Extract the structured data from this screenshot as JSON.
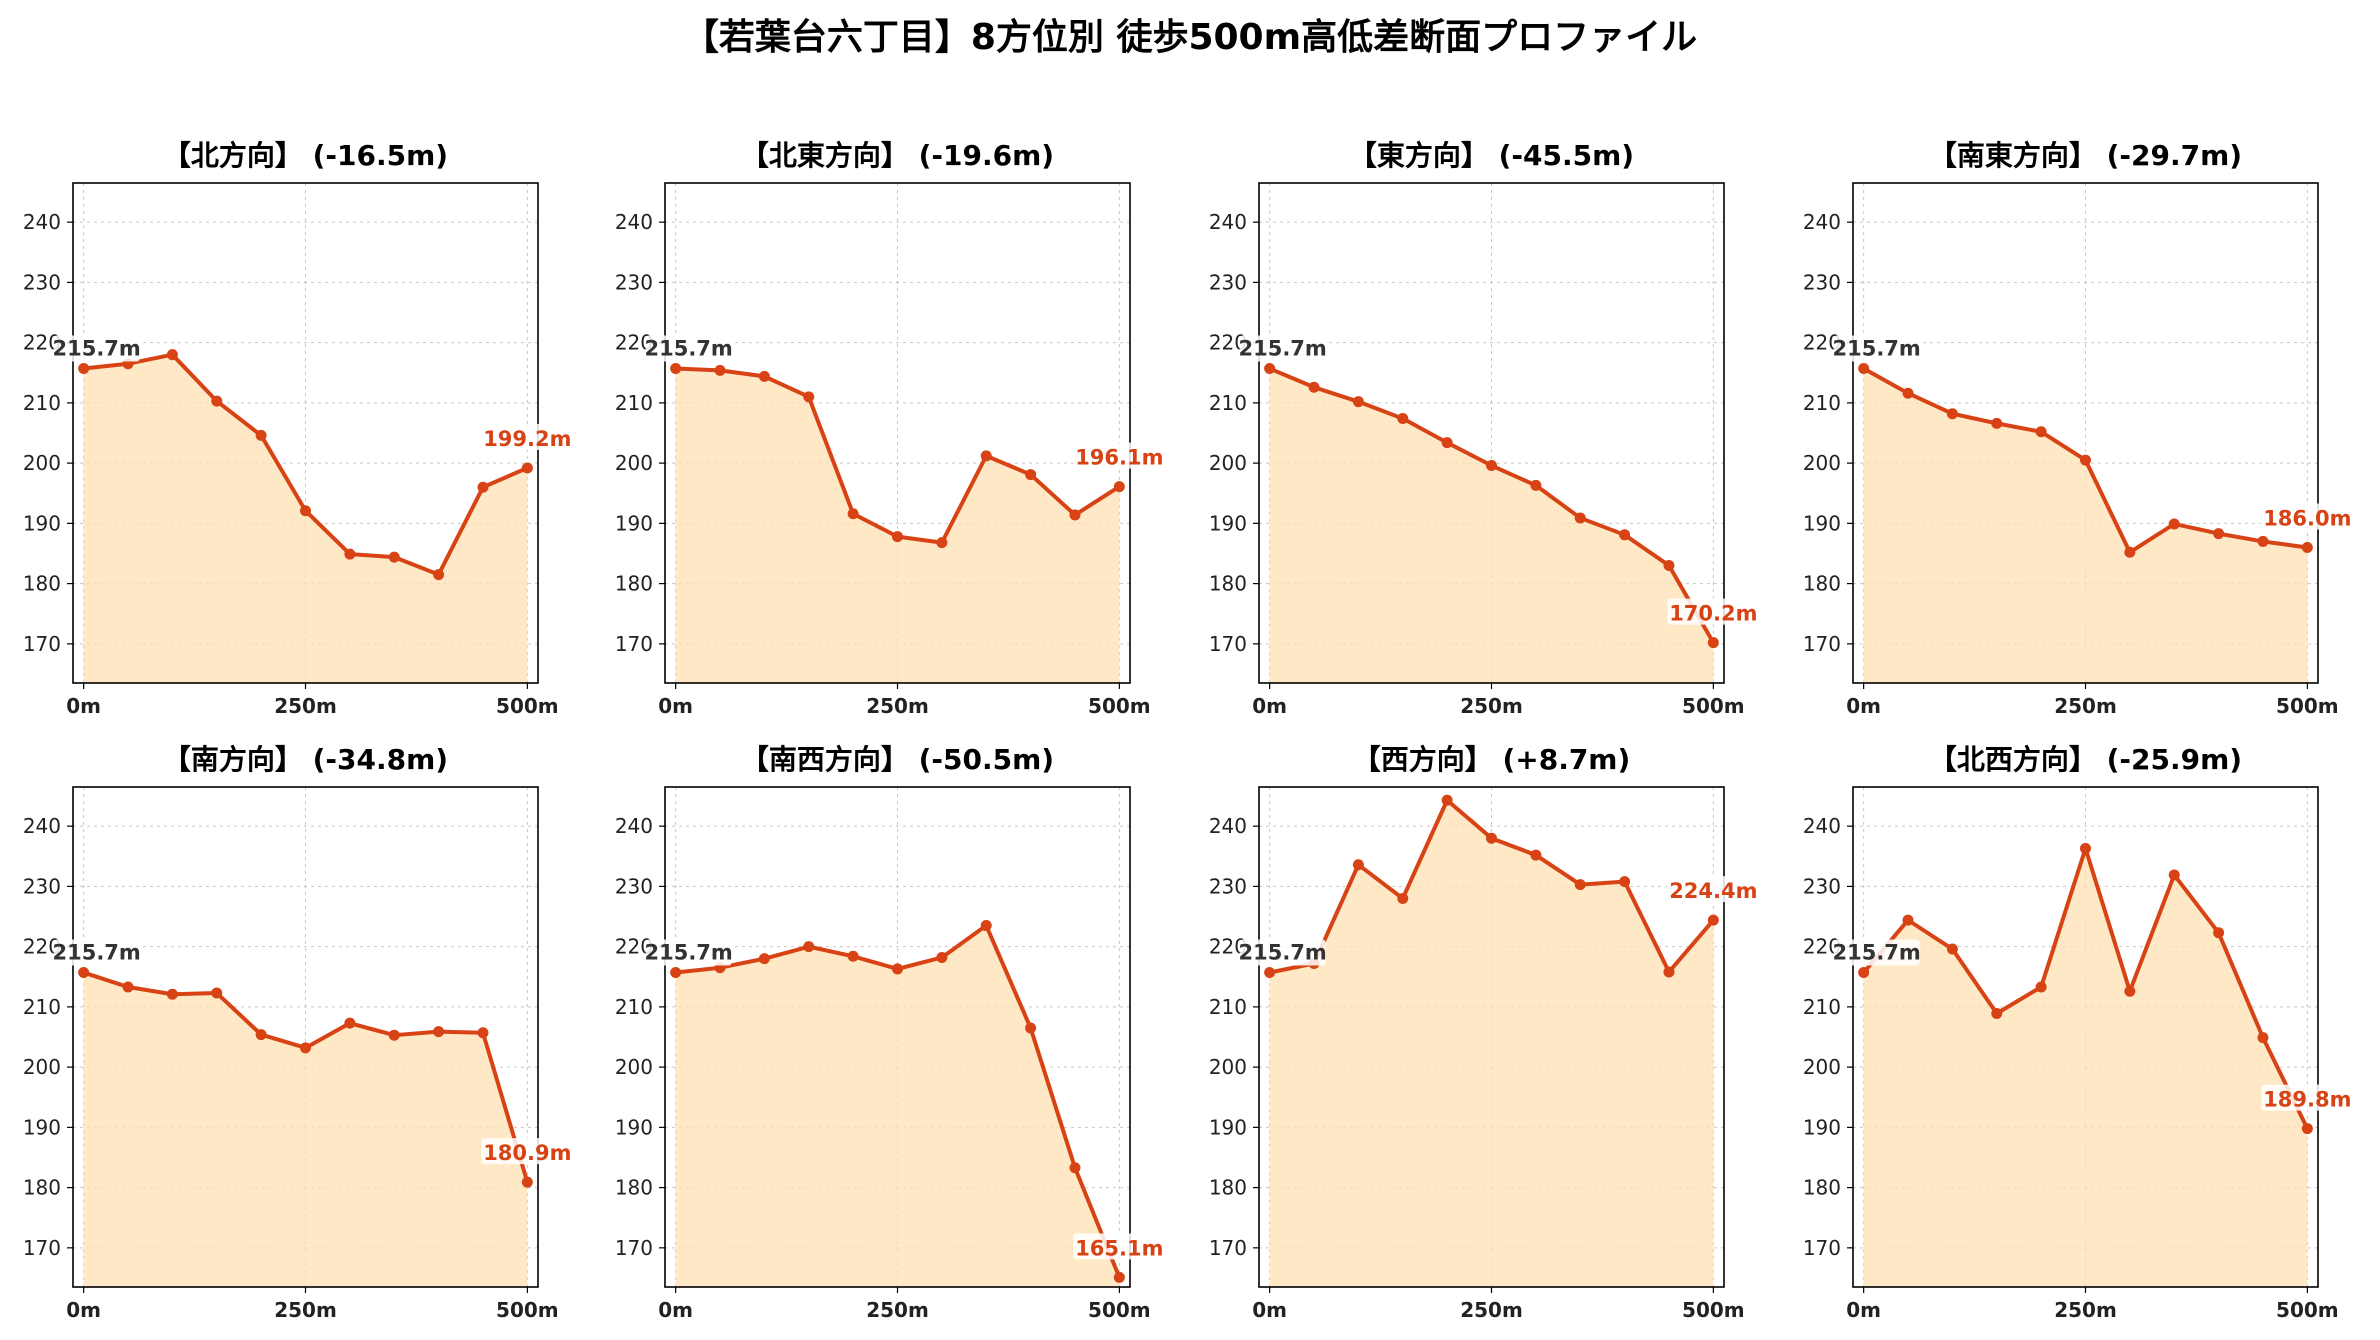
{
  "title": "【若葉台六丁目】8方位別 徒歩500m高低差断面プロファイル",
  "colors": {
    "line": "#d84315",
    "fill": "#ffe0b2",
    "grid": "#b0b0b0",
    "start_label": "#333333",
    "end_label": "#d84315"
  },
  "chart_data": [
    {
      "type": "area",
      "title": "【北方向】 (-16.5m)",
      "x": [
        0,
        50,
        100,
        150,
        200,
        250,
        300,
        350,
        400,
        450,
        500
      ],
      "y": [
        215.7,
        216.5,
        218.0,
        210.3,
        204.6,
        192.1,
        184.9,
        184.4,
        181.5,
        196.0,
        199.2
      ],
      "start_label": "215.7m",
      "end_label": "199.2m",
      "xticks": [
        0,
        250,
        500
      ],
      "xtick_labels": [
        "0m",
        "250m",
        "500m"
      ],
      "yticks": [
        170,
        180,
        190,
        200,
        210,
        220,
        230,
        240
      ],
      "ytick_labels": [
        "170",
        "180",
        "190",
        "200",
        "210",
        "220",
        "230",
        "240"
      ],
      "xlim": [
        -12,
        512
      ],
      "ylim": [
        163.5,
        246.5
      ],
      "grid": true
    },
    {
      "type": "area",
      "title": "【北東方向】 (-19.6m)",
      "x": [
        0,
        50,
        100,
        150,
        200,
        250,
        300,
        350,
        400,
        450,
        500
      ],
      "y": [
        215.7,
        215.4,
        214.4,
        211.0,
        191.6,
        187.8,
        186.8,
        201.2,
        198.1,
        191.4,
        196.1
      ],
      "start_label": "215.7m",
      "end_label": "196.1m",
      "xticks": [
        0,
        250,
        500
      ],
      "xtick_labels": [
        "0m",
        "250m",
        "500m"
      ],
      "yticks": [
        170,
        180,
        190,
        200,
        210,
        220,
        230,
        240
      ],
      "ytick_labels": [
        "170",
        "180",
        "190",
        "200",
        "210",
        "220",
        "230",
        "240"
      ],
      "xlim": [
        -12,
        512
      ],
      "ylim": [
        163.5,
        246.5
      ],
      "grid": true
    },
    {
      "type": "area",
      "title": "【東方向】 (-45.5m)",
      "x": [
        0,
        50,
        100,
        150,
        200,
        250,
        300,
        350,
        400,
        450,
        500
      ],
      "y": [
        215.7,
        212.6,
        210.2,
        207.4,
        203.4,
        199.6,
        196.3,
        190.9,
        188.1,
        183.0,
        170.2
      ],
      "start_label": "215.7m",
      "end_label": "170.2m",
      "xticks": [
        0,
        250,
        500
      ],
      "xtick_labels": [
        "0m",
        "250m",
        "500m"
      ],
      "yticks": [
        170,
        180,
        190,
        200,
        210,
        220,
        230,
        240
      ],
      "ytick_labels": [
        "170",
        "180",
        "190",
        "200",
        "210",
        "220",
        "230",
        "240"
      ],
      "xlim": [
        -12,
        512
      ],
      "ylim": [
        163.5,
        246.5
      ],
      "grid": true
    },
    {
      "type": "area",
      "title": "【南東方向】 (-29.7m)",
      "x": [
        0,
        50,
        100,
        150,
        200,
        250,
        300,
        350,
        400,
        450,
        500
      ],
      "y": [
        215.7,
        211.6,
        208.2,
        206.6,
        205.2,
        200.5,
        185.2,
        189.9,
        188.3,
        187.0,
        186.0
      ],
      "start_label": "215.7m",
      "end_label": "186.0m",
      "xticks": [
        0,
        250,
        500
      ],
      "xtick_labels": [
        "0m",
        "250m",
        "500m"
      ],
      "yticks": [
        170,
        180,
        190,
        200,
        210,
        220,
        230,
        240
      ],
      "ytick_labels": [
        "170",
        "180",
        "190",
        "200",
        "210",
        "220",
        "230",
        "240"
      ],
      "xlim": [
        -12,
        512
      ],
      "ylim": [
        163.5,
        246.5
      ],
      "grid": true
    },
    {
      "type": "area",
      "title": "【南方向】 (-34.8m)",
      "x": [
        0,
        50,
        100,
        150,
        200,
        250,
        300,
        350,
        400,
        450,
        500
      ],
      "y": [
        215.7,
        213.3,
        212.1,
        212.3,
        205.4,
        203.2,
        207.3,
        205.3,
        205.9,
        205.7,
        180.9
      ],
      "start_label": "215.7m",
      "end_label": "180.9m",
      "xticks": [
        0,
        250,
        500
      ],
      "xtick_labels": [
        "0m",
        "250m",
        "500m"
      ],
      "yticks": [
        170,
        180,
        190,
        200,
        210,
        220,
        230,
        240
      ],
      "ytick_labels": [
        "170",
        "180",
        "190",
        "200",
        "210",
        "220",
        "230",
        "240"
      ],
      "xlim": [
        -12,
        512
      ],
      "ylim": [
        163.5,
        246.5
      ],
      "grid": true
    },
    {
      "type": "area",
      "title": "【南西方向】 (-50.5m)",
      "x": [
        0,
        50,
        100,
        150,
        200,
        250,
        300,
        350,
        400,
        450,
        500
      ],
      "y": [
        215.7,
        216.5,
        218.0,
        220.0,
        218.4,
        216.3,
        218.2,
        223.5,
        206.5,
        183.3,
        165.1
      ],
      "start_label": "215.7m",
      "end_label": "165.1m",
      "xticks": [
        0,
        250,
        500
      ],
      "xtick_labels": [
        "0m",
        "250m",
        "500m"
      ],
      "yticks": [
        170,
        180,
        190,
        200,
        210,
        220,
        230,
        240
      ],
      "ytick_labels": [
        "170",
        "180",
        "190",
        "200",
        "210",
        "220",
        "230",
        "240"
      ],
      "xlim": [
        -12,
        512
      ],
      "ylim": [
        163.5,
        246.5
      ],
      "grid": true
    },
    {
      "type": "area",
      "title": "【西方向】 (+8.7m)",
      "x": [
        0,
        50,
        100,
        150,
        200,
        250,
        300,
        350,
        400,
        450,
        500
      ],
      "y": [
        215.7,
        217.2,
        233.6,
        228.0,
        244.3,
        238.0,
        235.2,
        230.3,
        230.8,
        215.8,
        224.4
      ],
      "start_label": "215.7m",
      "end_label": "224.4m",
      "xticks": [
        0,
        250,
        500
      ],
      "xtick_labels": [
        "0m",
        "250m",
        "500m"
      ],
      "yticks": [
        170,
        180,
        190,
        200,
        210,
        220,
        230,
        240
      ],
      "ytick_labels": [
        "170",
        "180",
        "190",
        "200",
        "210",
        "220",
        "230",
        "240"
      ],
      "xlim": [
        -12,
        512
      ],
      "ylim": [
        163.5,
        246.5
      ],
      "grid": true
    },
    {
      "type": "area",
      "title": "【北西方向】 (-25.9m)",
      "x": [
        0,
        50,
        100,
        150,
        200,
        250,
        300,
        350,
        400,
        450,
        500
      ],
      "y": [
        215.7,
        224.4,
        219.6,
        208.9,
        213.3,
        236.3,
        212.6,
        231.9,
        222.3,
        204.9,
        189.8
      ],
      "start_label": "215.7m",
      "end_label": "189.8m",
      "xticks": [
        0,
        250,
        500
      ],
      "xtick_labels": [
        "0m",
        "250m",
        "500m"
      ],
      "yticks": [
        170,
        180,
        190,
        200,
        210,
        220,
        230,
        240
      ],
      "ytick_labels": [
        "170",
        "180",
        "190",
        "200",
        "210",
        "220",
        "230",
        "240"
      ],
      "xlim": [
        -12,
        512
      ],
      "ylim": [
        163.5,
        246.5
      ],
      "grid": true
    }
  ]
}
